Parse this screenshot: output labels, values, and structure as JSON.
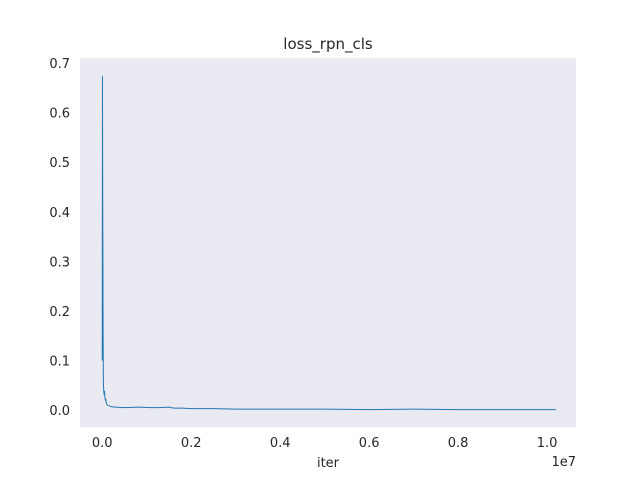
{
  "chart_data": {
    "type": "line",
    "title": "loss_rpn_cls",
    "xlabel": "iter",
    "ylabel": "",
    "x_offset_label": "1e7",
    "xlim": [
      -500000,
      10650000
    ],
    "ylim": [
      -0.034,
      0.71
    ],
    "x_ticks": [
      0,
      2000000,
      4000000,
      6000000,
      8000000,
      10000000
    ],
    "x_tick_labels": [
      "0.0",
      "0.2",
      "0.4",
      "0.6",
      "0.8",
      "1.0"
    ],
    "y_ticks": [
      0.0,
      0.1,
      0.2,
      0.3,
      0.4,
      0.5,
      0.6,
      0.7
    ],
    "y_tick_labels": [
      "0.0",
      "0.1",
      "0.2",
      "0.3",
      "0.4",
      "0.5",
      "0.6",
      "0.7"
    ],
    "grid": false,
    "legend": "none",
    "colors": {
      "plot_background": "#eaeaf2",
      "line": "#1f77b4",
      "text": "#262626"
    },
    "series": [
      {
        "x": [
          0,
          5000,
          10000,
          15000,
          20000,
          25000,
          30000,
          40000,
          50000,
          60000,
          70000,
          80000,
          90000,
          100000,
          120000,
          150000,
          200000,
          300000,
          500000,
          800000,
          1100000,
          1300000,
          1500000,
          1600000,
          1800000,
          2000000,
          2500000,
          3000000,
          4000000,
          5000000,
          6000000,
          7000000,
          8000000,
          9000000,
          10000000,
          10200000
        ],
        "y": [
          0.1,
          0.673,
          0.45,
          0.3,
          0.15,
          0.06,
          0.044,
          0.032,
          0.038,
          0.025,
          0.02,
          0.022,
          0.015,
          0.012,
          0.01,
          0.009,
          0.007,
          0.006,
          0.005,
          0.006,
          0.005,
          0.005,
          0.006,
          0.004,
          0.004,
          0.003,
          0.003,
          0.002,
          0.002,
          0.002,
          0.001,
          0.002,
          0.001,
          0.001,
          0.001,
          0.001
        ]
      }
    ]
  }
}
